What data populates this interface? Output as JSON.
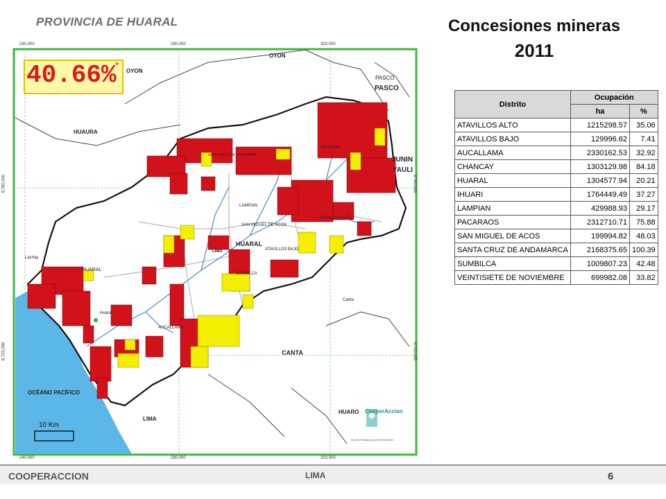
{
  "province_title": "PROVINCIA DE HUARAL",
  "title_line1": "Concesiones mineras",
  "title_line2": "2011",
  "percentage": "40.66%",
  "percentage_marker": "*",
  "table": {
    "header_district": "Distrito",
    "header_occupation": "Ocupación",
    "header_ha": "ha",
    "header_pct": "%",
    "rows": [
      {
        "district": "ATAVILLOS ALTO",
        "ha": "1215298.57",
        "pct": "35.06"
      },
      {
        "district": "ATAVILLOS BAJO",
        "ha": "129996.62",
        "pct": "7.41"
      },
      {
        "district": "AUCALLAMA",
        "ha": "2330162.53",
        "pct": "32.92"
      },
      {
        "district": "CHANCAY",
        "ha": "1303129.98",
        "pct": "84.18"
      },
      {
        "district": "HUARAL",
        "ha": "1304577.94",
        "pct": "20.21"
      },
      {
        "district": "IHUARI",
        "ha": "1764449.49",
        "pct": "37.27"
      },
      {
        "district": "LAMPIAN",
        "ha": "429988.93",
        "pct": "29.17"
      },
      {
        "district": "PACARAOS",
        "ha": "2312710.71",
        "pct": "75.88"
      },
      {
        "district": "SAN MIGUEL DE ACOS",
        "ha": "199994.82",
        "pct": "48.03"
      },
      {
        "district": "SANTA CRUZ DE ANDAMARCA",
        "ha": "2168375.65",
        "pct": "100.39"
      },
      {
        "district": "SUMBILCA",
        "ha": "1009807.23",
        "pct": "42.48"
      },
      {
        "district": "VEINTISIETE DE NOVIEMBRE",
        "ha": "699982.08",
        "pct": "33.82"
      }
    ]
  },
  "map_labels": {
    "oyon1": "OYON",
    "oyon2": "OYON",
    "pasco1": "PASCO",
    "pasco2": "PASCO",
    "huaura": "HUAURA",
    "junin": "JUNIN",
    "yauli": "YAULI",
    "lampian": "LAMPIAN",
    "huaral_upper": "HUARAL",
    "lima_small": "LIMA",
    "atavillos_bajo": "ATAVILLOS BAJO",
    "atavillos_alto": "ATAVILLOS ALTO",
    "san_miguel": "SAN MIGUEL DE ACOS",
    "sumbilca": "SUMBILCA",
    "huaral_lower": "HUARAL",
    "huaral_town": "Huaral",
    "lachay": "Lachay",
    "aucallama": "AUCALLAMA",
    "canta_small": "Canta",
    "canta": "CANTA",
    "oceano": "OCÉANO PACÍFICO",
    "lima": "LIMA",
    "huaro": "HUARO",
    "veintisiete": "VEINTISIETE DE NOVIEMBRE",
    "pacaraos": "PACARAOS"
  },
  "coords": {
    "top_240": "240,000",
    "top_280": "280,000",
    "top_320": "320,000",
    "bottom_240": "240,000",
    "bottom_280": "280,000",
    "bottom_320": "320,000",
    "left_8760": "8,760,000",
    "left_8720": "8,720,000",
    "right_8760": "8,760,000",
    "right_8720": "8,720,000"
  },
  "scale_label": "10 Km",
  "logo_text": "CooperAccion",
  "logo_sub": "Acción Solidaria para el Desarrollo",
  "footer_left": "COOPERACCION",
  "footer_mid": "LIMA",
  "page_number": "6",
  "colors": {
    "concession_red": "#d2121b",
    "concession_yellow": "#f4ef00",
    "sea": "#5bb7e8",
    "frame_green": "#3cb83c",
    "river": "#4a86d4"
  }
}
